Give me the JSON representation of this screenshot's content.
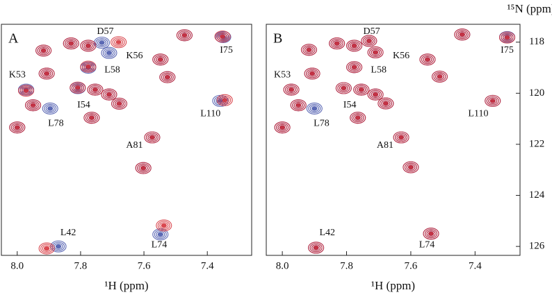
{
  "chart_data": [
    {
      "type": "scatter",
      "panel_label": "A",
      "xlabel": "¹H (ppm)",
      "xlim": [
        8.05,
        7.26
      ],
      "ylim": [
        117.3,
        126.35
      ],
      "xticks": [
        {
          "value": 8,
          "label": "8.0"
        },
        7.8,
        7.6,
        7.4
      ],
      "series": [
        {
          "color": "#3f4fa8",
          "x": [
            7.917,
            7.83,
            7.776,
            7.733,
            7.71,
            7.548,
            7.472,
            7.35,
            7.526,
            7.907,
            7.776,
            7.972,
            7.95,
            7.896,
            7.765,
            7.809,
            7.754,
            7.71,
            7.678,
            8.0,
            7.574,
            7.602,
            7.359,
            7.548,
            7.87
          ],
          "values": [
            118.33,
            118.05,
            118.14,
            118.02,
            118.42,
            118.68,
            117.73,
            117.8,
            119.37,
            119.23,
            119.0,
            119.86,
            120.47,
            120.6,
            120.96,
            119.8,
            119.86,
            120.05,
            120.41,
            121.34,
            121.73,
            122.93,
            120.3,
            125.53,
            126.0
          ]
        },
        {
          "color": "#d42a32",
          "x": [
            7.917,
            7.83,
            7.776,
            7.68,
            7.548,
            7.472,
            7.352,
            7.526,
            7.907,
            7.776,
            7.972,
            7.95,
            7.765,
            7.809,
            7.754,
            7.71,
            7.678,
            8.0,
            7.574,
            7.602,
            7.345,
            7.537,
            7.907
          ],
          "values": [
            118.33,
            118.05,
            118.14,
            118.0,
            118.68,
            117.73,
            117.78,
            119.37,
            119.23,
            118.96,
            119.9,
            120.47,
            120.96,
            119.78,
            119.86,
            120.05,
            120.41,
            121.34,
            121.73,
            122.93,
            120.27,
            125.18,
            126.08
          ]
        }
      ],
      "annotations": [
        {
          "text": "D57",
          "x": 7.722,
          "y": 117.59
        },
        {
          "text": "K56",
          "x": 7.63,
          "y": 118.55
        },
        {
          "text": "L58",
          "x": 7.7,
          "y": 119.1
        },
        {
          "text": "K53",
          "x": 8.0,
          "y": 119.29
        },
        {
          "text": "I54",
          "x": 7.79,
          "y": 120.47
        },
        {
          "text": "L78",
          "x": 7.878,
          "y": 121.2
        },
        {
          "text": "L110",
          "x": 7.39,
          "y": 120.82
        },
        {
          "text": "I75",
          "x": 7.34,
          "y": 118.33
        },
        {
          "text": "A81",
          "x": 7.63,
          "y": 122.05
        },
        {
          "text": "L42",
          "x": 7.839,
          "y": 125.48
        },
        {
          "text": "L74",
          "x": 7.552,
          "y": 125.95
        }
      ]
    },
    {
      "type": "scatter",
      "panel_label": "B",
      "xlabel": "¹H (ppm)",
      "ylabel": "¹⁵N (ppm)",
      "xlim": [
        8.05,
        7.26
      ],
      "ylim": [
        117.3,
        126.35
      ],
      "xticks": [
        {
          "value": 8,
          "label": "8.0"
        },
        7.8,
        7.6,
        7.4
      ],
      "yticks": [
        118,
        120,
        122,
        124,
        126
      ],
      "series": [
        {
          "color": "#3f4fa8",
          "x": [
            7.917,
            7.83,
            7.776,
            7.73,
            7.71,
            7.548,
            7.44,
            7.3,
            7.51,
            7.907,
            7.776,
            7.972,
            7.95,
            7.9,
            7.765,
            7.809,
            7.754,
            7.71,
            7.678,
            8.0,
            7.63,
            7.6,
            7.345,
            7.537,
            7.895
          ],
          "values": [
            118.3,
            118.05,
            118.14,
            117.95,
            118.4,
            118.68,
            117.7,
            117.8,
            119.35,
            119.23,
            118.98,
            119.86,
            120.47,
            120.6,
            120.96,
            119.8,
            119.86,
            120.05,
            120.4,
            121.34,
            121.73,
            122.9,
            120.3,
            125.5,
            126.05
          ]
        },
        {
          "color": "#d42a32",
          "x": [
            7.917,
            7.83,
            7.776,
            7.73,
            7.71,
            7.548,
            7.44,
            7.3,
            7.51,
            7.907,
            7.776,
            7.972,
            7.95,
            7.765,
            7.809,
            7.754,
            7.71,
            7.678,
            8.0,
            7.63,
            7.6,
            7.345,
            7.537,
            7.895
          ],
          "values": [
            118.3,
            118.05,
            118.14,
            117.95,
            118.4,
            118.68,
            117.7,
            117.82,
            119.35,
            119.23,
            118.98,
            119.86,
            120.47,
            120.96,
            119.8,
            119.86,
            120.05,
            120.4,
            121.34,
            121.73,
            122.9,
            120.3,
            125.5,
            126.05
          ]
        }
      ],
      "annotations": [
        {
          "text": "D57",
          "x": 7.722,
          "y": 117.59
        },
        {
          "text": "K56",
          "x": 7.63,
          "y": 118.55
        },
        {
          "text": "L58",
          "x": 7.7,
          "y": 119.1
        },
        {
          "text": "K53",
          "x": 8.0,
          "y": 119.29
        },
        {
          "text": "I54",
          "x": 7.79,
          "y": 120.47
        },
        {
          "text": "L78",
          "x": 7.878,
          "y": 121.2
        },
        {
          "text": "L110",
          "x": 7.39,
          "y": 120.82
        },
        {
          "text": "I75",
          "x": 7.3,
          "y": 118.33
        },
        {
          "text": "A81",
          "x": 7.68,
          "y": 122.05
        },
        {
          "text": "L42",
          "x": 7.86,
          "y": 125.48
        },
        {
          "text": "L74",
          "x": 7.55,
          "y": 125.95
        }
      ]
    }
  ]
}
